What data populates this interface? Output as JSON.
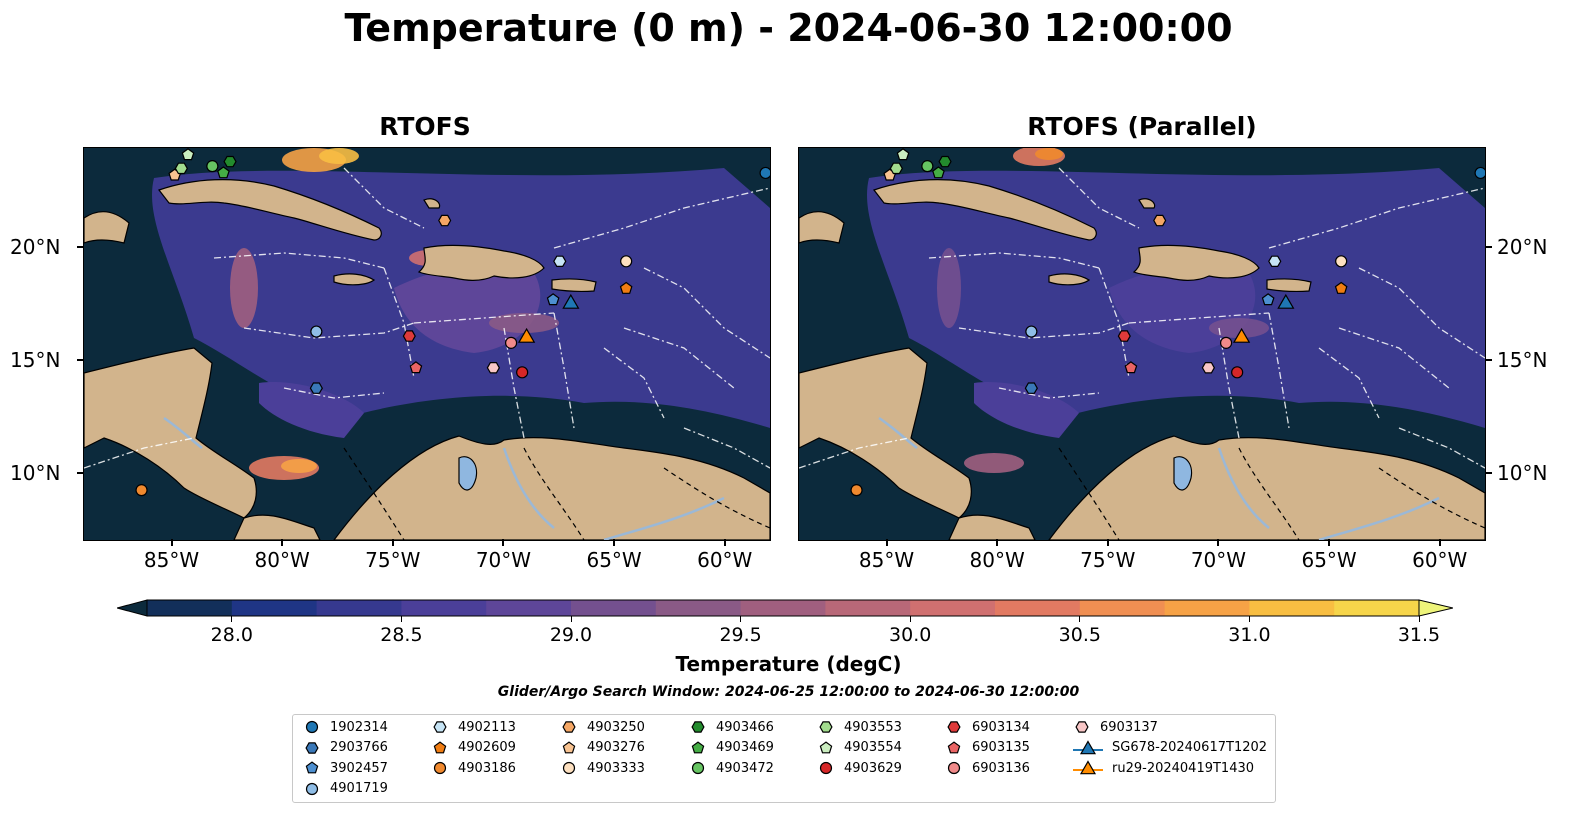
{
  "title": "Temperature (0 m) - 2024-06-30 12:00:00",
  "panels": [
    {
      "title": "RTOFS"
    },
    {
      "title": "RTOFS (Parallel)"
    }
  ],
  "lon_ticks": [
    "85°W",
    "80°W",
    "75°W",
    "70°W",
    "65°W",
    "60°W"
  ],
  "lat_ticks": [
    "20°N",
    "15°N",
    "10°N"
  ],
  "colorbar": {
    "label": "Temperature (degC)",
    "ticks": [
      "28.0",
      "28.5",
      "29.0",
      "29.5",
      "30.0",
      "30.5",
      "31.0",
      "31.5"
    ],
    "colors": [
      "#0c2a3c",
      "#122f5a",
      "#1f3585",
      "#36398f",
      "#4b3f99",
      "#5e4699",
      "#74508f",
      "#8a5a86",
      "#a05f7f",
      "#b86878",
      "#d07070",
      "#e27a62",
      "#f08f52",
      "#f6a246",
      "#f8be42",
      "#f6d54a",
      "#eef47a"
    ]
  },
  "search_window": "Glider/Argo Search Window: 2024-06-25 12:00:00 to 2024-06-30 12:00:00",
  "legend": [
    {
      "label": "1902314",
      "marker": "circle",
      "color": "#1f77b4"
    },
    {
      "label": "2903766",
      "marker": "hexagon",
      "color": "#3a78b8"
    },
    {
      "label": "3902457",
      "marker": "pentagon",
      "color": "#4d8fd0"
    },
    {
      "label": "4901719",
      "marker": "circle",
      "color": "#8fbde6"
    },
    {
      "label": "4902113",
      "marker": "hexagon",
      "color": "#c6e4f5"
    },
    {
      "label": "4902609",
      "marker": "pentagon",
      "color": "#f07d12"
    },
    {
      "label": "4903186",
      "marker": "circle",
      "color": "#f0892e"
    },
    {
      "label": "4903250",
      "marker": "hexagon",
      "color": "#f5a765"
    },
    {
      "label": "4903276",
      "marker": "pentagon",
      "color": "#f8c391"
    },
    {
      "label": "4903333",
      "marker": "circle",
      "color": "#fde0c0"
    },
    {
      "label": "4903466",
      "marker": "hexagon",
      "color": "#238b2d"
    },
    {
      "label": "4903469",
      "marker": "pentagon",
      "color": "#45ad45"
    },
    {
      "label": "4903472",
      "marker": "circle",
      "color": "#66c462"
    },
    {
      "label": "4903553",
      "marker": "hexagon",
      "color": "#a2dc8e"
    },
    {
      "label": "4903554",
      "marker": "pentagon",
      "color": "#cbeec0"
    },
    {
      "label": "4903629",
      "marker": "circle",
      "color": "#d62728"
    },
    {
      "label": "6903134",
      "marker": "hexagon",
      "color": "#de3a3a"
    },
    {
      "label": "6903135",
      "marker": "pentagon",
      "color": "#ea6464"
    },
    {
      "label": "6903136",
      "marker": "circle",
      "color": "#f08a8a"
    },
    {
      "label": "6903137",
      "marker": "hexagon",
      "color": "#f8c6c6"
    },
    {
      "label": "SG678-20240617T1202",
      "marker": "triangle",
      "color": "#1f77b4"
    },
    {
      "label": "ru29-20240419T1430",
      "marker": "triangle",
      "color": "#ff8c00"
    }
  ],
  "markers": [
    {
      "id": "1902314",
      "lon": -58.2,
      "lat": 23.3
    },
    {
      "id": "2903766",
      "lon": -78.5,
      "lat": 13.8
    },
    {
      "id": "3902457",
      "lon": -67.8,
      "lat": 17.7
    },
    {
      "id": "4901719",
      "lon": -78.5,
      "lat": 16.3
    },
    {
      "id": "4902113",
      "lon": -67.5,
      "lat": 19.4
    },
    {
      "id": "4902609",
      "lon": -64.5,
      "lat": 18.2
    },
    {
      "id": "4903186",
      "lon": -86.4,
      "lat": 9.3
    },
    {
      "id": "4903250",
      "lon": -72.7,
      "lat": 21.2
    },
    {
      "id": "4903276",
      "lon": -84.9,
      "lat": 23.2
    },
    {
      "id": "4903333",
      "lon": -64.5,
      "lat": 19.4
    },
    {
      "id": "4903466",
      "lon": -82.4,
      "lat": 23.8
    },
    {
      "id": "4903469",
      "lon": -82.7,
      "lat": 23.3
    },
    {
      "id": "4903472",
      "lon": -83.2,
      "lat": 23.6
    },
    {
      "id": "4903553",
      "lon": -84.6,
      "lat": 23.5
    },
    {
      "id": "4903554",
      "lon": -84.3,
      "lat": 24.1
    },
    {
      "id": "4903629",
      "lon": -69.2,
      "lat": 14.5
    },
    {
      "id": "6903134",
      "lon": -74.3,
      "lat": 16.1
    },
    {
      "id": "6903135",
      "lon": -74.0,
      "lat": 14.7
    },
    {
      "id": "6903136",
      "lon": -69.7,
      "lat": 15.8
    },
    {
      "id": "6903137",
      "lon": -70.5,
      "lat": 14.7
    },
    {
      "id": "SG678-20240617T1202",
      "lon": -67.0,
      "lat": 17.6
    },
    {
      "id": "ru29-20240419T1430",
      "lon": -69.0,
      "lat": 16.1
    }
  ]
}
